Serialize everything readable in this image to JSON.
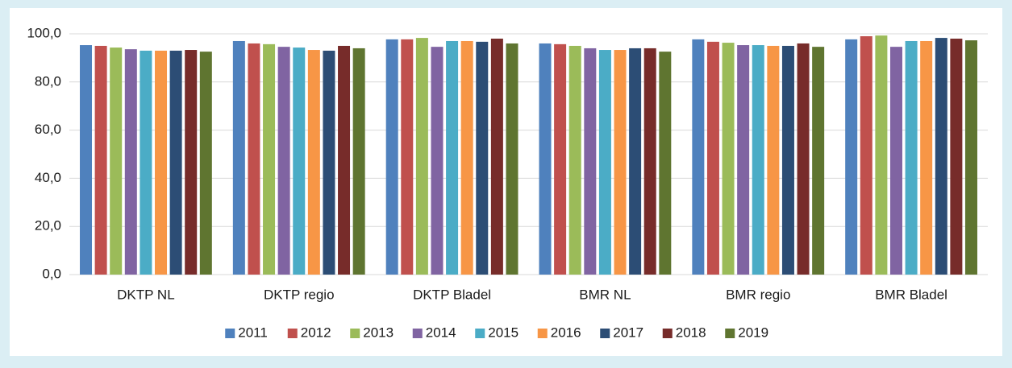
{
  "chart_data": {
    "type": "bar",
    "categories": [
      "DKTP NL",
      "DKTP regio",
      "DKTP Bladel",
      "BMR NL",
      "BMR regio",
      "BMR Bladel"
    ],
    "series": [
      {
        "name": "2011",
        "color": "#4f81bd",
        "values": [
          95.3,
          97.0,
          97.7,
          96.0,
          97.7,
          97.7
        ]
      },
      {
        "name": "2012",
        "color": "#c0504d",
        "values": [
          95.0,
          96.0,
          97.7,
          95.7,
          96.7,
          99.0
        ]
      },
      {
        "name": "2013",
        "color": "#9bbb59",
        "values": [
          94.3,
          95.7,
          98.3,
          95.0,
          96.3,
          99.3
        ]
      },
      {
        "name": "2014",
        "color": "#8064a2",
        "values": [
          93.6,
          94.6,
          94.6,
          94.0,
          95.3,
          94.6
        ]
      },
      {
        "name": "2015",
        "color": "#4bacc6",
        "values": [
          93.0,
          94.3,
          97.0,
          93.3,
          95.3,
          97.0
        ]
      },
      {
        "name": "2016",
        "color": "#f79646",
        "values": [
          93.0,
          93.3,
          97.0,
          93.3,
          95.0,
          97.0
        ]
      },
      {
        "name": "2017",
        "color": "#2c4d75",
        "values": [
          93.0,
          93.0,
          96.7,
          94.0,
          95.0,
          98.3
        ]
      },
      {
        "name": "2018",
        "color": "#772c2a",
        "values": [
          93.3,
          95.0,
          98.0,
          94.0,
          96.0,
          98.0
        ]
      },
      {
        "name": "2019",
        "color": "#5f7530",
        "values": [
          92.6,
          94.0,
          96.0,
          92.6,
          94.6,
          97.3
        ]
      }
    ],
    "ylim": [
      0,
      100
    ],
    "yticks": [
      {
        "value": 0,
        "label": "0,0"
      },
      {
        "value": 20,
        "label": "20,0"
      },
      {
        "value": 40,
        "label": "40,0"
      },
      {
        "value": 60,
        "label": "60,0"
      },
      {
        "value": 80,
        "label": "80,0"
      },
      {
        "value": 100,
        "label": "100,0"
      }
    ],
    "grid": true,
    "legend": "bottom"
  }
}
